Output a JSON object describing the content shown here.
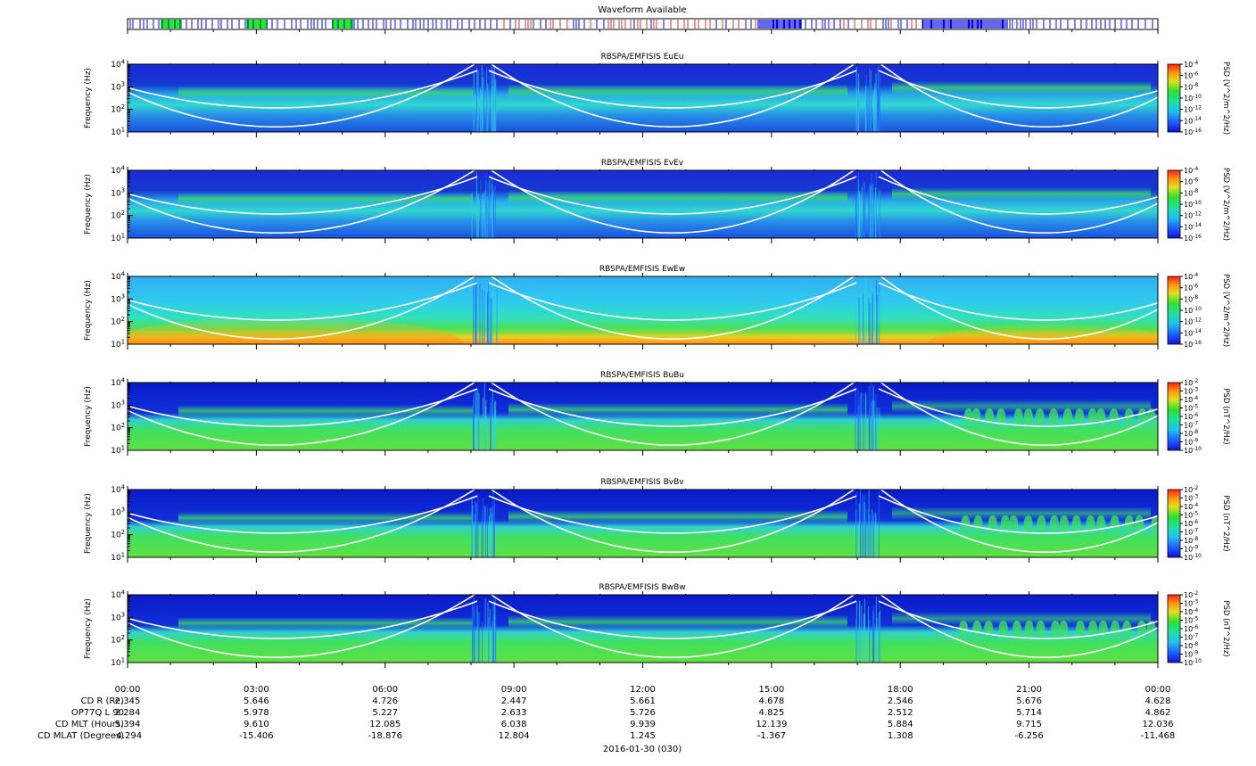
{
  "waveform": {
    "title": "Waveform Available",
    "legend": [
      {
        "name": "green",
        "color": "#22ee22"
      },
      {
        "name": "blue",
        "color": "#0000dd"
      },
      {
        "name": "red",
        "color": "#cc3333"
      }
    ]
  },
  "chart_data": [
    {
      "type": "heatmap",
      "title": "RBSPA/EMFISIS  EuEu",
      "ylabel": "Frequency (Hz)",
      "yticks": [
        "10^1",
        "10^2",
        "10^3",
        "10^4"
      ],
      "ylim": [
        10,
        10000
      ],
      "yscale": "log",
      "colorbar": {
        "label": "PSD (V^2/m^2/Hz)",
        "ticks": [
          "10^-4",
          "10^-6",
          "10^-8",
          "10^-10",
          "10^-12",
          "10^-14",
          "10^-16"
        ]
      }
    },
    {
      "type": "heatmap",
      "title": "RBSPA/EMFISIS  EvEv",
      "ylabel": "Frequency (Hz)",
      "yticks": [
        "10^1",
        "10^2",
        "10^3",
        "10^4"
      ],
      "ylim": [
        10,
        10000
      ],
      "yscale": "log",
      "colorbar": {
        "label": "PSD (V^2/m^2/Hz)",
        "ticks": [
          "10^-4",
          "10^-6",
          "10^-8",
          "10^-10",
          "10^-12",
          "10^-14",
          "10^-16"
        ]
      }
    },
    {
      "type": "heatmap",
      "title": "RBSPA/EMFISIS  EwEw",
      "ylabel": "Frequency (Hz)",
      "yticks": [
        "10^1",
        "10^2",
        "10^3",
        "10^4"
      ],
      "ylim": [
        10,
        10000
      ],
      "yscale": "log",
      "colorbar": {
        "label": "PSD (V^2/m^2/Hz)",
        "ticks": [
          "10^-4",
          "10^-6",
          "10^-8",
          "10^-10",
          "10^-12",
          "10^-14",
          "10^-16"
        ]
      }
    },
    {
      "type": "heatmap",
      "title": "RBSPA/EMFISIS  BuBu",
      "ylabel": "Frequency (Hz)",
      "yticks": [
        "10^1",
        "10^2",
        "10^3",
        "10^4"
      ],
      "ylim": [
        10,
        10000
      ],
      "yscale": "log",
      "colorbar": {
        "label": "PSD (nT^2/Hz)",
        "ticks": [
          "10^-2",
          "10^-3",
          "10^-4",
          "10^-5",
          "10^-6",
          "10^-7",
          "10^-8",
          "10^-9",
          "10^-10"
        ]
      }
    },
    {
      "type": "heatmap",
      "title": "RBSPA/EMFISIS  BvBv",
      "ylabel": "Frequency (Hz)",
      "yticks": [
        "10^1",
        "10^2",
        "10^3",
        "10^4"
      ],
      "ylim": [
        10,
        10000
      ],
      "yscale": "log",
      "colorbar": {
        "label": "PSD (nT^2/Hz)",
        "ticks": [
          "10^-2",
          "10^-3",
          "10^-4",
          "10^-5",
          "10^-6",
          "10^-7",
          "10^-8",
          "10^-9",
          "10^-10"
        ]
      }
    },
    {
      "type": "heatmap",
      "title": "RBSPA/EMFISIS  BwBw",
      "ylabel": "Frequency (Hz)",
      "yticks": [
        "10^1",
        "10^2",
        "10^3",
        "10^4"
      ],
      "ylim": [
        10,
        10000
      ],
      "yscale": "log",
      "colorbar": {
        "label": "PSD (nT^2/Hz)",
        "ticks": [
          "10^-2",
          "10^-3",
          "10^-4",
          "10^-5",
          "10^-6",
          "10^-7",
          "10^-8",
          "10^-9",
          "10^-10"
        ]
      }
    }
  ],
  "xaxis": {
    "ticks": [
      "00:00",
      "03:00",
      "06:00",
      "09:00",
      "12:00",
      "15:00",
      "18:00",
      "21:00",
      "00:00"
    ],
    "date_label": "2016-01-30 (030)",
    "ephemeris": [
      {
        "label": "CD R (Re)",
        "values": [
          "2.345",
          "5.646",
          "4.726",
          "2.447",
          "5.661",
          "4.678",
          "2.546",
          "5.676",
          "4.628"
        ]
      },
      {
        "label": "OP77Q L 90",
        "values": [
          "2.284",
          "5.978",
          "5.227",
          "2.633",
          "5.726",
          "4.825",
          "2.512",
          "5.714",
          "4.862"
        ]
      },
      {
        "label": "CD MLT (Hours)",
        "values": [
          "5.394",
          "9.610",
          "12.085",
          "6.038",
          "9.939",
          "12.139",
          "5.884",
          "9.715",
          "12.036"
        ]
      },
      {
        "label": "CD MLAT (Degrees)",
        "values": [
          "-4.294",
          "-15.406",
          "-18.876",
          "12.804",
          "1.245",
          "-1.367",
          "1.308",
          "-6.256",
          "-11.468"
        ]
      }
    ]
  }
}
